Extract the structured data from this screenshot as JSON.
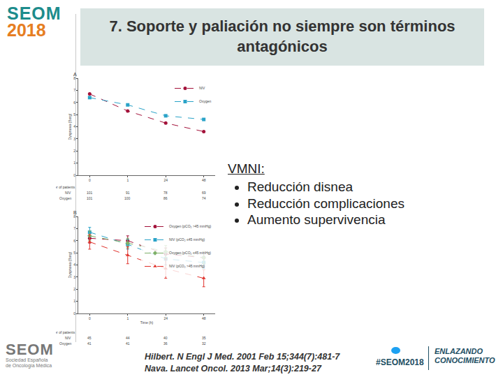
{
  "header": {
    "logo": [
      "SEOM",
      "2018"
    ],
    "title": "7. Soporte y paliación no siempre son términos antagónicos"
  },
  "content": {
    "heading": "VMNI:",
    "bullets": [
      "Reducción disnea",
      "Reducción complicaciones",
      "Aumento supervivencia"
    ]
  },
  "references": [
    "Hilbert. N Engl J Med. 2001 Feb 15;344(7):481-7",
    "Nava. Lancet Oncol. 2013 Mar;14(3):219-27"
  ],
  "footer": {
    "society": [
      "SEOM",
      "Sociedad Española",
      "de Oncología Médica"
    ],
    "hashtag": "#SEOM2018",
    "tagline": [
      "ENLAZANDO",
      "CONOCIMIENTO"
    ]
  },
  "chart_data": [
    {
      "type": "line",
      "title": "A",
      "y_label": "Dyspnoea (Borg)",
      "categories": [
        "0",
        "1",
        "24",
        "48"
      ],
      "ylim": [
        0,
        8
      ],
      "yticks": [
        0,
        1,
        2,
        3,
        4,
        5,
        6,
        7,
        8
      ],
      "grid": false,
      "legend": "top right",
      "series": [
        {
          "name": "NIV",
          "color": "#a3123a",
          "marker": "circle",
          "line_style": "dash",
          "values": [
            6.7,
            5.3,
            4.3,
            3.6
          ]
        },
        {
          "name": "Oxygen",
          "color": "#2aa3c8",
          "marker": "square",
          "line_style": "dash",
          "values": [
            6.4,
            5.8,
            4.9,
            4.6
          ]
        }
      ],
      "risk_table": {
        "title": "Number of patients",
        "rows": [
          {
            "name": "NIV",
            "values": [
              101,
              91,
              78,
              69
            ]
          },
          {
            "name": "Oxygen",
            "values": [
              101,
              100,
              86,
              74
            ]
          }
        ]
      }
    },
    {
      "type": "line",
      "title": "B",
      "x_label": "Time (h)",
      "y_label": "Dyspnoea (Borg)",
      "categories": [
        "0",
        "1",
        "24",
        "48"
      ],
      "ylim": [
        0,
        8
      ],
      "yticks": [
        0,
        1,
        2,
        3,
        4,
        5,
        6,
        7,
        8
      ],
      "grid": false,
      "legend": "top right",
      "series": [
        {
          "name": "Oxygen (pCO₂ >45 mmHg)",
          "color": "#a3123a",
          "marker": "circle",
          "line_style": "dash",
          "values": [
            6.2,
            6.0,
            4.9,
            4.6
          ],
          "errors": [
            0.4,
            0.4,
            0.5,
            0.5
          ]
        },
        {
          "name": "NIV (pCO₂ ≤45 mmHg)",
          "color": "#2aa3c8",
          "marker": "square",
          "line_style": "dash",
          "values": [
            6.7,
            5.7,
            4.5,
            4.2
          ],
          "errors": [
            0.4,
            0.4,
            0.5,
            0.5
          ]
        },
        {
          "name": "Oxygen (pCO₂ ≤45 mmHg)",
          "color": "#7fb069",
          "marker": "diamond",
          "line_style": "dash",
          "values": [
            6.4,
            5.8,
            5.1,
            4.6
          ],
          "errors": [
            0.4,
            0.4,
            0.5,
            0.5
          ]
        },
        {
          "name": "NIV (pCO₂ >45 mmHg)",
          "color": "#e0302a",
          "marker": "triangle-up",
          "line_style": "dash",
          "values": [
            5.9,
            4.8,
            3.7,
            2.9
          ],
          "errors": [
            0.6,
            0.7,
            0.8,
            0.7
          ]
        }
      ],
      "risk_table": {
        "title": "Number of patients",
        "rows": [
          {
            "name": "NIV",
            "values": [
              45,
              44,
              40,
              35
            ]
          },
          {
            "name": "Oxygen",
            "values": [
              41,
              41,
              36,
              32
            ]
          }
        ]
      }
    }
  ]
}
